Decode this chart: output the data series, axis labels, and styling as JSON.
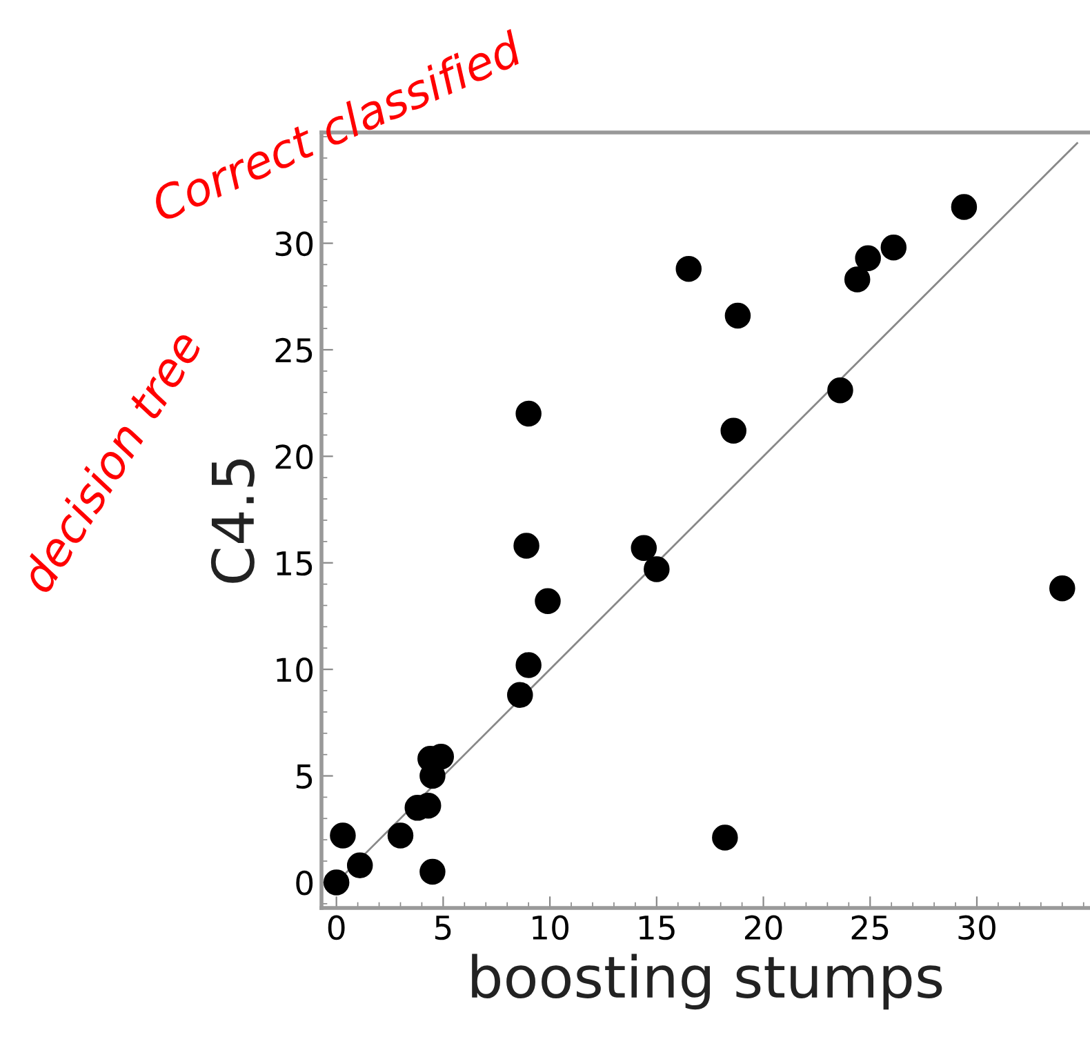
{
  "chart_data": {
    "type": "scatter",
    "xlabel": "boosting stumps",
    "ylabel": "C4.5",
    "annotations": [
      "Correct classified",
      "decision tree"
    ],
    "series": [
      {
        "marker": "circle",
        "color": "#000000",
        "x": [
          0,
          0.3,
          1.1,
          3.0,
          3.8,
          4.3,
          4.5,
          4.5,
          4.4,
          4.9,
          8.6,
          9.0,
          8.9,
          9.0,
          9.9,
          14.4,
          15.0,
          18.2,
          16.5,
          18.8,
          18.6,
          23.6,
          24.4,
          24.9,
          26.1,
          29.4,
          34.0
        ],
        "values": [
          0,
          2.2,
          0.8,
          2.2,
          3.5,
          3.6,
          0.5,
          5.0,
          5.8,
          5.9,
          8.8,
          10.2,
          15.8,
          22.0,
          13.2,
          15.7,
          14.7,
          2.1,
          28.8,
          26.6,
          21.2,
          23.1,
          28.3,
          29.3,
          29.8,
          31.7,
          13.8
        ]
      },
      {
        "type": "line",
        "color": "#888888",
        "x": [
          0,
          34.7
        ],
        "values": [
          0,
          34.7
        ]
      }
    ],
    "xlim": [
      -0.7,
      35.3
    ],
    "ylim": [
      -1.2,
      35.2
    ],
    "xticks": [
      0,
      5,
      10,
      15,
      20,
      25,
      30
    ],
    "yticks": [
      0,
      5,
      10,
      15,
      20,
      25,
      30
    ],
    "grid": false,
    "legend": false
  }
}
